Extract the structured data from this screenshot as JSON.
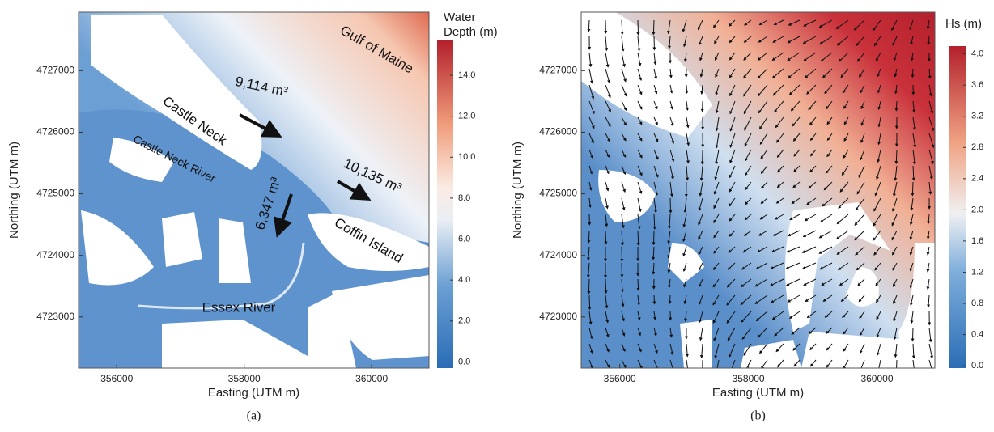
{
  "panels": [
    {
      "caption": "(a)",
      "x_label": "Easting (UTM m)",
      "y_label": "Northing (UTM m)",
      "xlim": [
        355400,
        360900
      ],
      "ylim": [
        4722170,
        4727950
      ],
      "xticks": [
        356000,
        358000,
        360000
      ],
      "yticks": [
        4723000,
        4724000,
        4725000,
        4726000,
        4727000
      ],
      "colorbar": {
        "title": [
          "Water",
          "Depth (m)"
        ],
        "lim": [
          -0.3,
          15.7
        ],
        "ticks": [
          {
            "value": 0,
            "label": "0.0"
          },
          {
            "value": 2,
            "label": "2.0"
          },
          {
            "value": 4,
            "label": "4.0"
          },
          {
            "value": 6,
            "label": "6.0"
          },
          {
            "value": 8,
            "label": "8.0"
          },
          {
            "value": 10,
            "label": "10.0"
          },
          {
            "value": 12,
            "label": "12.0"
          },
          {
            "value": 14,
            "label": "14.0"
          }
        ]
      },
      "annotations": [
        "Gulf of Maine",
        "Castle Neck",
        "Castle Neck River",
        "9,114 m³",
        "10,135 m³",
        "6,347 m³",
        "Coffin Island",
        "Essex River"
      ]
    },
    {
      "caption": "(b)",
      "x_label": "Easting (UTM m)",
      "y_label": "Northing (UTM m)",
      "xlim": [
        355400,
        360900
      ],
      "ylim": [
        4722170,
        4727950
      ],
      "xticks": [
        356000,
        358000,
        360000
      ],
      "yticks": [
        4723000,
        4724000,
        4725000,
        4726000,
        4727000
      ],
      "colorbar": {
        "title": [
          "Hs (m)"
        ],
        "lim": [
          -0.03,
          4.1
        ],
        "ticks": [
          {
            "value": 0,
            "label": "0.0"
          },
          {
            "value": 0.4,
            "label": "0.4"
          },
          {
            "value": 0.8,
            "label": "0.8"
          },
          {
            "value": 1.2,
            "label": "1.2"
          },
          {
            "value": 1.6,
            "label": "1.6"
          },
          {
            "value": 2,
            "label": "2.0"
          },
          {
            "value": 2.4,
            "label": "2.4"
          },
          {
            "value": 2.8,
            "label": "2.8"
          },
          {
            "value": 3.2,
            "label": "3.2"
          },
          {
            "value": 3.6,
            "label": "3.6"
          },
          {
            "value": 4,
            "label": "4.0"
          }
        ]
      },
      "annotations": []
    }
  ]
}
